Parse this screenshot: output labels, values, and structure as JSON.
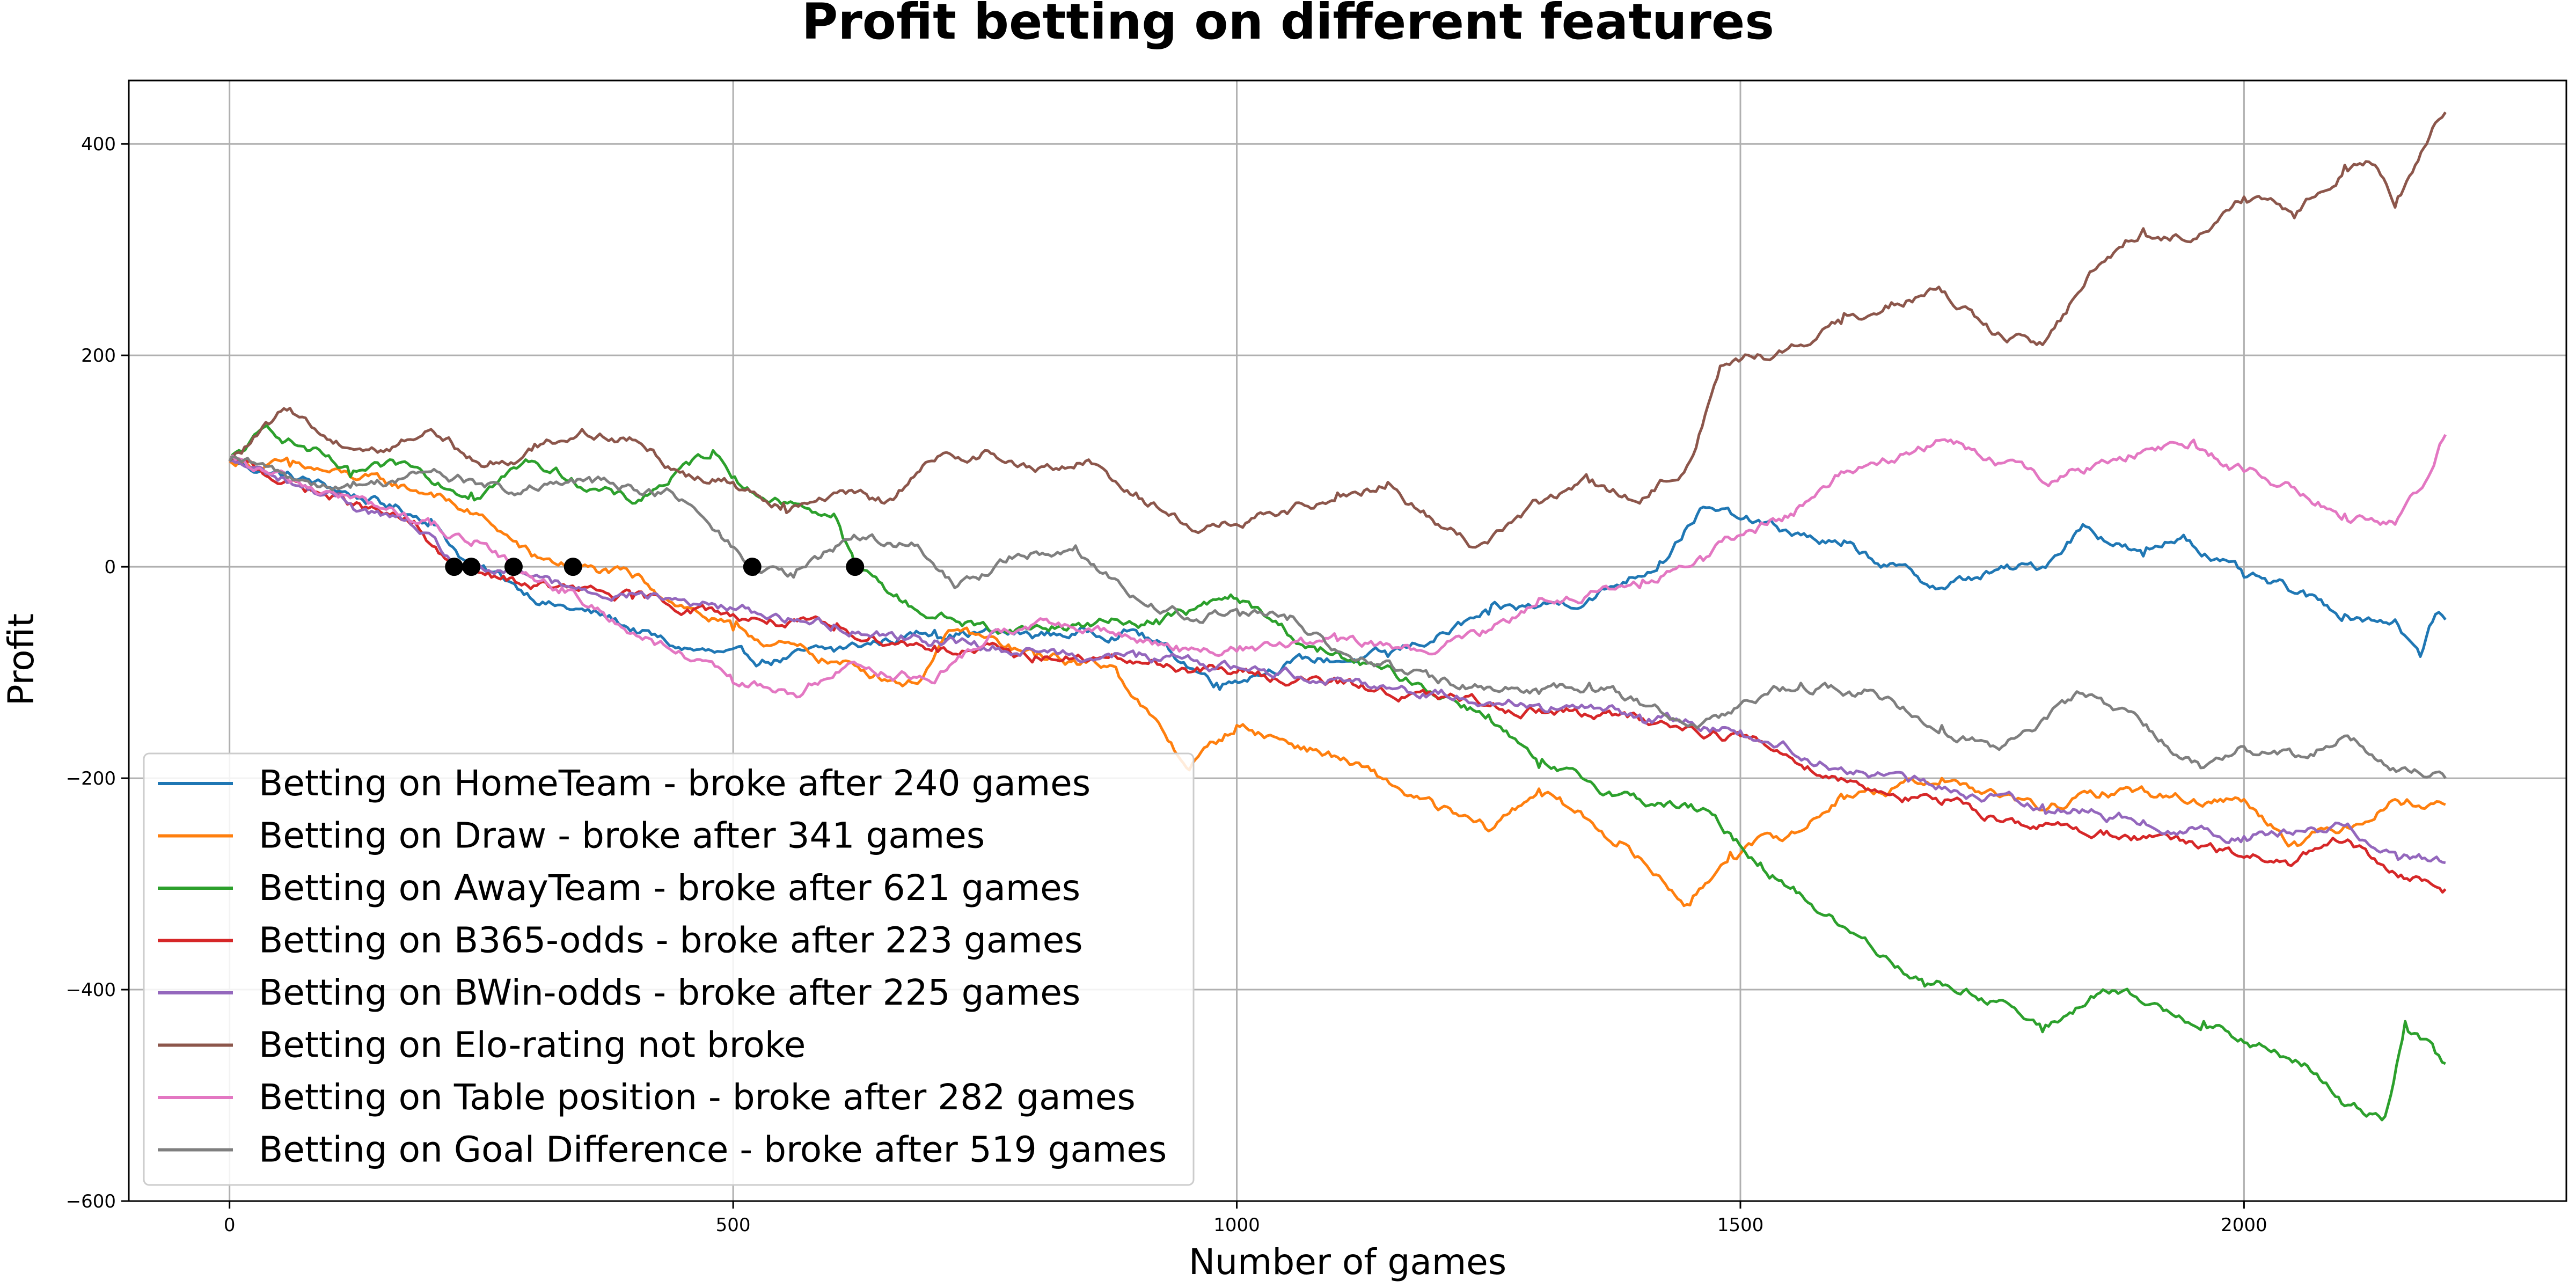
{
  "chart_data": {
    "type": "line",
    "title": "Profit betting on different features",
    "xlabel": "Number of games",
    "ylabel": "Profit",
    "xlim": [
      -100,
      2320
    ],
    "ylim": [
      -600,
      460
    ],
    "xticks": [
      0,
      500,
      1000,
      1500,
      2000
    ],
    "yticks": [
      -600,
      -400,
      -200,
      0,
      200,
      400
    ],
    "xtick_labels": [
      "0",
      "500",
      "1000",
      "1500",
      "2000"
    ],
    "ytick_labels": [
      "−600",
      "−400",
      "−200",
      "0",
      "200",
      "400"
    ],
    "grid": true,
    "legend_position": "lower-left",
    "series": [
      {
        "name": "Betting on HomeTeam - broke after 240 games",
        "color": "#1f77b4",
        "x": [
          0,
          100,
          150,
          200,
          240,
          280,
          320,
          380,
          440,
          520,
          600,
          700,
          800,
          900,
          980,
          1050,
          1150,
          1250,
          1350,
          1420,
          1460,
          1500,
          1560,
          1600,
          1700,
          1750,
          1800,
          1840,
          1900,
          1940,
          2000,
          2050,
          2100,
          2150,
          2175,
          2190,
          2200
        ],
        "y": [
          100,
          75,
          60,
          45,
          0,
          -15,
          -35,
          -50,
          -75,
          -90,
          -80,
          -60,
          -65,
          -60,
          -110,
          -90,
          -85,
          -45,
          -30,
          5,
          55,
          45,
          30,
          20,
          -20,
          -5,
          0,
          40,
          10,
          30,
          -10,
          -25,
          -45,
          -50,
          -85,
          -45,
          -50
        ]
      },
      {
        "name": "Betting on Draw - broke after 341 games",
        "color": "#ff7f0e",
        "x": [
          0,
          60,
          120,
          200,
          260,
          300,
          341,
          400,
          500,
          600,
          680,
          720,
          800,
          880,
          950,
          1000,
          1100,
          1200,
          1250,
          1300,
          1380,
          1450,
          1490,
          1560,
          1600,
          1650,
          1700,
          1800,
          1880,
          1950,
          2000,
          2050,
          2100,
          2150,
          2200
        ],
        "y": [
          100,
          95,
          85,
          70,
          40,
          10,
          0,
          -10,
          -60,
          -90,
          -110,
          -60,
          -85,
          -95,
          -190,
          -150,
          -180,
          -230,
          -250,
          -210,
          -260,
          -320,
          -270,
          -250,
          -215,
          -210,
          -200,
          -230,
          -210,
          -220,
          -220,
          -260,
          -245,
          -220,
          -225
        ]
      },
      {
        "name": "Betting on AwayTeam - broke after 621 games",
        "color": "#2ca02c",
        "x": [
          0,
          40,
          80,
          120,
          180,
          240,
          300,
          400,
          480,
          520,
          560,
          600,
          621,
          680,
          760,
          840,
          920,
          1000,
          1080,
          1180,
          1250,
          1300,
          1400,
          1460,
          1520,
          1600,
          1680,
          1760,
          1800,
          1860,
          1920,
          1960,
          2000,
          2060,
          2100,
          2140,
          2160,
          2190,
          2200
        ],
        "y": [
          100,
          130,
          110,
          85,
          95,
          70,
          100,
          60,
          110,
          70,
          60,
          50,
          0,
          -40,
          -60,
          -55,
          -50,
          -30,
          -80,
          -110,
          -140,
          -190,
          -220,
          -230,
          -280,
          -340,
          -390,
          -410,
          -440,
          -400,
          -420,
          -430,
          -450,
          -470,
          -510,
          -520,
          -430,
          -460,
          -470
        ]
      },
      {
        "name": "Betting on B365-odds - broke after 223 games",
        "color": "#d62728",
        "x": [
          0,
          60,
          120,
          180,
          223,
          260,
          320,
          400,
          500,
          600,
          700,
          800,
          900,
          1000,
          1100,
          1200,
          1300,
          1400,
          1500,
          1600,
          1700,
          1800,
          1900,
          2000,
          2050,
          2100,
          2150,
          2200
        ],
        "y": [
          100,
          80,
          60,
          40,
          0,
          -10,
          -20,
          -30,
          -45,
          -60,
          -75,
          -85,
          -90,
          -100,
          -110,
          -125,
          -135,
          -145,
          -160,
          -200,
          -225,
          -245,
          -255,
          -275,
          -280,
          -260,
          -290,
          -305
        ]
      },
      {
        "name": "Betting on BWin-odds - broke after 225 games",
        "color": "#9467bd",
        "x": [
          0,
          60,
          120,
          180,
          225,
          260,
          320,
          400,
          500,
          600,
          700,
          800,
          900,
          1000,
          1100,
          1200,
          1300,
          1400,
          1500,
          1600,
          1700,
          1800,
          1900,
          2000,
          2100,
          2150,
          2200
        ],
        "y": [
          100,
          80,
          60,
          40,
          0,
          -5,
          -15,
          -25,
          -40,
          -55,
          -70,
          -80,
          -85,
          -95,
          -105,
          -120,
          -130,
          -140,
          -155,
          -190,
          -210,
          -225,
          -240,
          -255,
          -245,
          -270,
          -280
        ]
      },
      {
        "name": "Betting on Elo-rating not broke",
        "color": "#8c564b",
        "x": [
          0,
          60,
          100,
          150,
          200,
          250,
          300,
          350,
          400,
          450,
          500,
          550,
          600,
          650,
          700,
          750,
          800,
          850,
          900,
          950,
          1000,
          1050,
          1100,
          1150,
          1200,
          1240,
          1300,
          1350,
          1400,
          1450,
          1480,
          1520,
          1560,
          1600,
          1650,
          1700,
          1750,
          1800,
          1850,
          1900,
          1950,
          2000,
          2050,
          2100,
          2130,
          2150,
          2170,
          2190,
          2200
        ],
        "y": [
          100,
          150,
          120,
          110,
          130,
          95,
          110,
          130,
          120,
          90,
          80,
          60,
          70,
          60,
          100,
          110,
          90,
          100,
          70,
          40,
          40,
          50,
          70,
          80,
          40,
          20,
          60,
          80,
          60,
          100,
          190,
          200,
          210,
          230,
          250,
          260,
          220,
          210,
          280,
          320,
          310,
          350,
          330,
          380,
          380,
          340,
          380,
          420,
          430
        ]
      },
      {
        "name": "Betting on Table position - broke after 282 games",
        "color": "#e377c2",
        "x": [
          0,
          60,
          120,
          200,
          240,
          282,
          330,
          380,
          440,
          500,
          560,
          620,
          700,
          760,
          820,
          880,
          940,
          1000,
          1100,
          1200,
          1250,
          1300,
          1400,
          1460,
          1500,
          1550,
          1600,
          1650,
          1700,
          1750,
          1800,
          1850,
          1900,
          1950,
          2000,
          2050,
          2100,
          2150,
          2180,
          2200
        ],
        "y": [
          100,
          80,
          65,
          40,
          20,
          0,
          -20,
          -50,
          -80,
          -110,
          -120,
          -90,
          -110,
          -60,
          -55,
          -65,
          -75,
          -80,
          -70,
          -80,
          -60,
          -30,
          -20,
          10,
          30,
          50,
          90,
          100,
          120,
          100,
          80,
          95,
          110,
          120,
          90,
          75,
          50,
          40,
          80,
          125
        ]
      },
      {
        "name": "Betting on Goal Difference - broke after 519 games",
        "color": "#7f7f7f",
        "x": [
          0,
          60,
          120,
          200,
          280,
          360,
          440,
          519,
          560,
          620,
          680,
          720,
          780,
          840,
          900,
          960,
          1000,
          1050,
          1100,
          1200,
          1300,
          1350,
          1400,
          1460,
          1500,
          1560,
          1620,
          1700,
          1760,
          1840,
          1900,
          1960,
          2000,
          2060,
          2100,
          2160,
          2200
        ],
        "y": [
          100,
          85,
          75,
          90,
          70,
          80,
          70,
          0,
          -10,
          30,
          20,
          -20,
          10,
          20,
          -30,
          -50,
          -40,
          -50,
          -80,
          -110,
          -120,
          -110,
          -130,
          -150,
          -130,
          -110,
          -120,
          -150,
          -170,
          -120,
          -150,
          -190,
          -170,
          -180,
          -160,
          -190,
          -200
        ]
      }
    ],
    "broke_markers": {
      "color": "#000000",
      "x": [
        223,
        240,
        282,
        341,
        519,
        621
      ],
      "y": [
        0,
        0,
        0,
        0,
        0,
        0
      ]
    }
  }
}
